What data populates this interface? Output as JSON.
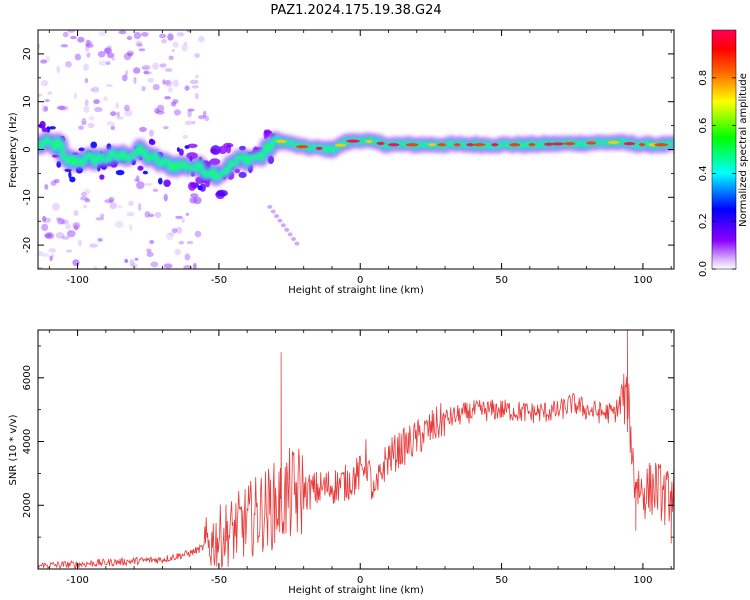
{
  "title": "PAZ1.2024.175.19.38.G24",
  "colors": {
    "snr_line": "#e83a3a",
    "axis": "#000000"
  },
  "chart_data": [
    {
      "type": "heatmap",
      "xlabel": "Height of straight line (km)",
      "ylabel": "Frequency (Hz)",
      "xlim": [
        -114,
        111
      ],
      "ylim": [
        -25,
        25
      ],
      "xticks": [
        -100,
        -50,
        0,
        50,
        100
      ],
      "yticks": [
        20,
        10,
        0,
        -10,
        -20
      ],
      "colorbar": {
        "label": "Normalized spectral amplitude",
        "range": [
          0,
          1
        ],
        "ticks": [
          0.0,
          0.2,
          0.4,
          0.6,
          0.8
        ],
        "colormap": "gist_rainbow_r"
      },
      "ridge": [
        {
          "x": -105,
          "y": -2.5
        },
        {
          "x": -95,
          "y": -2.0
        },
        {
          "x": -85,
          "y": -1.5
        },
        {
          "x": -78,
          "y": -0.5
        },
        {
          "x": -70,
          "y": -3.0
        },
        {
          "x": -60,
          "y": -3.5
        },
        {
          "x": -50,
          "y": -5.0
        },
        {
          "x": -42,
          "y": -2.0
        },
        {
          "x": -35,
          "y": -1.5
        },
        {
          "x": -30,
          "y": 2.0
        },
        {
          "x": -20,
          "y": 0.5
        },
        {
          "x": -10,
          "y": 0.0
        },
        {
          "x": -5,
          "y": 1.5
        },
        {
          "x": 0,
          "y": 2.0
        },
        {
          "x": 10,
          "y": 1.0
        },
        {
          "x": 30,
          "y": 1.0
        },
        {
          "x": 60,
          "y": 1.0
        },
        {
          "x": 90,
          "y": 1.5
        },
        {
          "x": 100,
          "y": 1.0
        },
        {
          "x": 110,
          "y": 1.0
        }
      ]
    },
    {
      "type": "line",
      "xlabel": "Height of straight line (km)",
      "ylabel": "SNR (10 * v/v)",
      "xlim": [
        -114,
        111
      ],
      "ylim": [
        0,
        7500
      ],
      "xticks": [
        -100,
        -50,
        0,
        50,
        100
      ],
      "yticks": [
        2000,
        4000,
        6000
      ],
      "series": [
        {
          "values_x": [
            -114,
            -100,
            -90,
            -80,
            -70,
            -60,
            -55,
            -50,
            -45,
            -40,
            -35,
            -30,
            -28,
            -25,
            -20,
            -15,
            -10,
            -5,
            0,
            2,
            5,
            8,
            10,
            15,
            20,
            25,
            30,
            40,
            50,
            60,
            70,
            75,
            80,
            85,
            90,
            93,
            95,
            97,
            100,
            105,
            108,
            111
          ],
          "values_y": [
            100,
            150,
            200,
            250,
            300,
            500,
            700,
            1000,
            1200,
            1500,
            1800,
            2000,
            2200,
            2300,
            2400,
            2500,
            2600,
            2700,
            3000,
            3500,
            2200,
            3200,
            3500,
            3800,
            4100,
            4400,
            4700,
            4950,
            5000,
            4900,
            4950,
            5200,
            5000,
            4900,
            4900,
            5400,
            5000,
            2800,
            2400,
            2600,
            2200,
            2500
          ]
        }
      ],
      "spikes": [
        {
          "x": -28,
          "y": 6800
        },
        {
          "x": 94.5,
          "y": 7500
        },
        {
          "x": 97.5,
          "y": 1200
        },
        {
          "x": 110,
          "y": 800
        }
      ]
    }
  ]
}
